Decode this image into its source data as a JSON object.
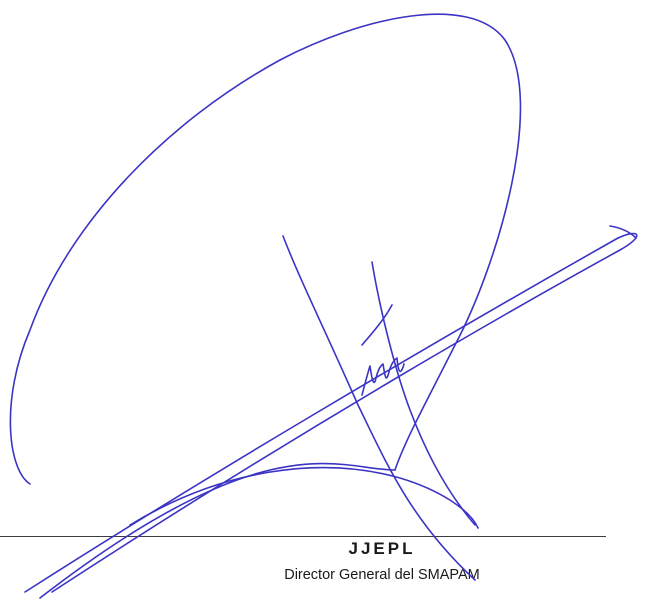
{
  "signature_block": {
    "name": "JJEPL",
    "title": "Director General del SMAPAM",
    "ink_color": "#3b34c4",
    "line_color": "#3c3c3c"
  }
}
